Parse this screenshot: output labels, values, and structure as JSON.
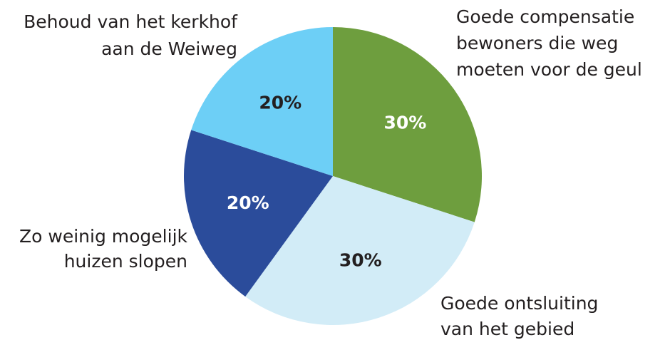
{
  "chart_data": {
    "type": "pie",
    "categories": [
      [
        "Goede compensatie",
        "bewoners die weg",
        "moeten voor de geul"
      ],
      [
        "Goede ontsluiting",
        "van het gebied"
      ],
      [
        "Zo weinig mogelijk",
        "huizen slopen"
      ],
      [
        "Behoud van het kerkhof",
        "aan de Weiweg"
      ]
    ],
    "values": [
      30,
      30,
      20,
      20
    ],
    "value_labels": [
      "30%",
      "30%",
      "20%",
      "20%"
    ],
    "colors": [
      "#6e9e3e",
      "#d2ecf7",
      "#2b4c9b",
      "#6dcff6"
    ]
  }
}
